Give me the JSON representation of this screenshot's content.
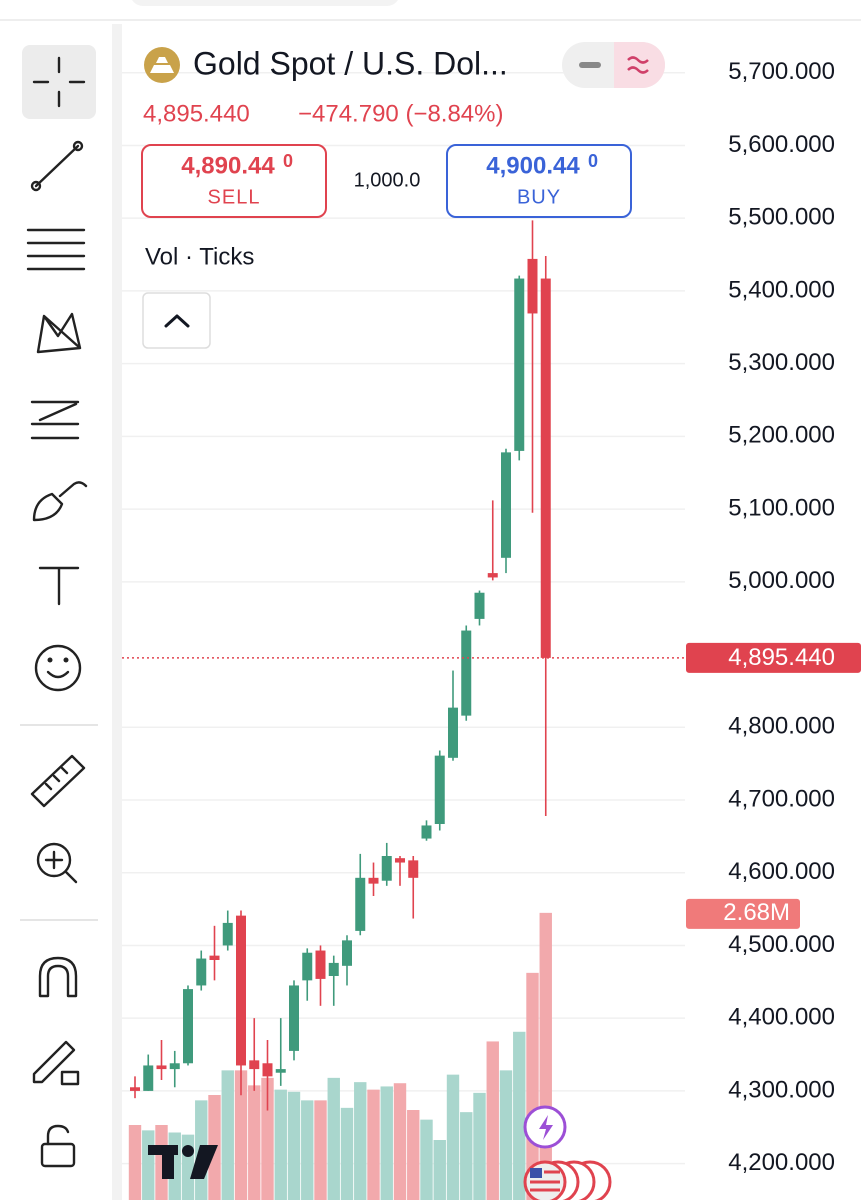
{
  "header": {
    "title": "Gold Spot / U.S. Dol...",
    "change": "−474.790 (−8.84%)",
    "sell_price": "4,890.44",
    "sell_price_tail": "0",
    "sell_label": "SELL",
    "quantity": "1,000.0",
    "buy_price": "4,900.44",
    "buy_price_tail": "0",
    "buy_label": "BUY",
    "indicator": "Vol · Ticks"
  },
  "chart_data": {
    "type": "candlestick",
    "title": "Gold Spot / U.S. Dol...",
    "open": [
      4305,
      4300,
      4335,
      4330,
      4338,
      4445,
      4486,
      4500,
      4541,
      4342,
      4338,
      4325,
      4355,
      4452,
      4493,
      4458,
      4472,
      4520,
      4593,
      4589,
      4620,
      4617,
      4647,
      4667,
      4758,
      4816,
      4949,
      5012,
      5033,
      5180,
      5444,
      5417
    ],
    "high": [
      4320,
      4350,
      4370,
      4355,
      4445,
      4493,
      4527,
      4548,
      4548,
      4400,
      4370,
      4400,
      4452,
      4496,
      4500,
      4486,
      4514,
      4626,
      4614,
      4641,
      4623,
      4623,
      4672,
      4768,
      4878,
      4940,
      4988,
      5112,
      5183,
      5421,
      5497,
      5448
    ],
    "low": [
      4290,
      4300,
      4315,
      4305,
      4335,
      4438,
      4452,
      4493,
      4294,
      4300,
      4273,
      4307,
      4342,
      4424,
      4417,
      4417,
      4445,
      4514,
      4568,
      4582,
      4582,
      4537,
      4644,
      4658,
      4754,
      4809,
      4940,
      5002,
      5012,
      5167,
      5095,
      4678
    ],
    "close": [
      4300,
      4335,
      4330,
      4338,
      4440,
      4482,
      4480,
      4531,
      4335,
      4330,
      4320,
      4330,
      4445,
      4490,
      4454,
      4476,
      4507,
      4593,
      4585,
      4623,
      4614,
      4593,
      4665,
      4761,
      4827,
      4933,
      4985,
      5006,
      5178,
      5417,
      5369,
      4895.44
    ],
    "up_color": "#3f9a7c",
    "down_color": "#e0434f",
    "volume": {
      "values": [
        0.7,
        0.65,
        0.7,
        0.63,
        0.61,
        0.93,
        0.98,
        1.21,
        1.21,
        1.07,
        1.14,
        1.03,
        1.01,
        0.93,
        0.93,
        1.14,
        0.86,
        1.1,
        1.03,
        1.06,
        1.09,
        0.84,
        0.75,
        0.56,
        1.17,
        0.82,
        1.0,
        1.48,
        1.21,
        1.57,
        2.12,
        2.68
      ],
      "lim": [
        0,
        11.2
      ],
      "last_label": "2.68M",
      "up_color": "#a9d6cd",
      "down_color": "#f2a9ac"
    },
    "current_price": {
      "value": 4895.44,
      "label": "4,895.440"
    },
    "ylim": [
      4150,
      5800
    ],
    "yticks": [
      {
        "value": 4200,
        "label": "4,200.000"
      },
      {
        "value": 4300,
        "label": "4,300.000"
      },
      {
        "value": 4400,
        "label": "4,400.000"
      },
      {
        "value": 4500,
        "label": "4,500.000"
      },
      {
        "value": 4600,
        "label": "4,600.000"
      },
      {
        "value": 4700,
        "label": "4,700.000"
      },
      {
        "value": 4800,
        "label": "4,800.000"
      },
      {
        "value": 5000,
        "label": "5,000.000"
      },
      {
        "value": 5100,
        "label": "5,100.000"
      },
      {
        "value": 5200,
        "label": "5,200.000"
      },
      {
        "value": 5300,
        "label": "5,300.000"
      },
      {
        "value": 5400,
        "label": "5,400.000"
      },
      {
        "value": 5500,
        "label": "5,500.000"
      },
      {
        "value": 5600,
        "label": "5,600.000"
      },
      {
        "value": 5700,
        "label": "5,700.000"
      }
    ],
    "grid": true
  }
}
